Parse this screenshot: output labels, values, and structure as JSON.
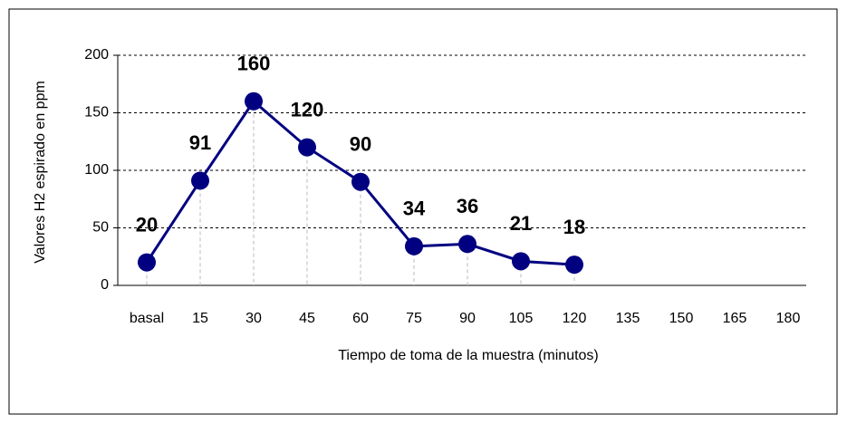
{
  "chart_data": {
    "type": "line",
    "x_label": "Tiempo de toma de la muestra (minutos)",
    "y_label": "Valores H2 espirado en ppm",
    "categories": [
      "basal",
      "15",
      "30",
      "45",
      "60",
      "75",
      "90",
      "105",
      "120",
      "135",
      "150",
      "165",
      "180"
    ],
    "values": [
      20,
      91,
      160,
      120,
      90,
      34,
      36,
      21,
      18,
      null,
      null,
      null,
      null
    ],
    "color": "#000080",
    "ylim": [
      0,
      200
    ],
    "yticks": [
      0,
      50,
      100,
      150,
      200
    ],
    "grid": true
  }
}
